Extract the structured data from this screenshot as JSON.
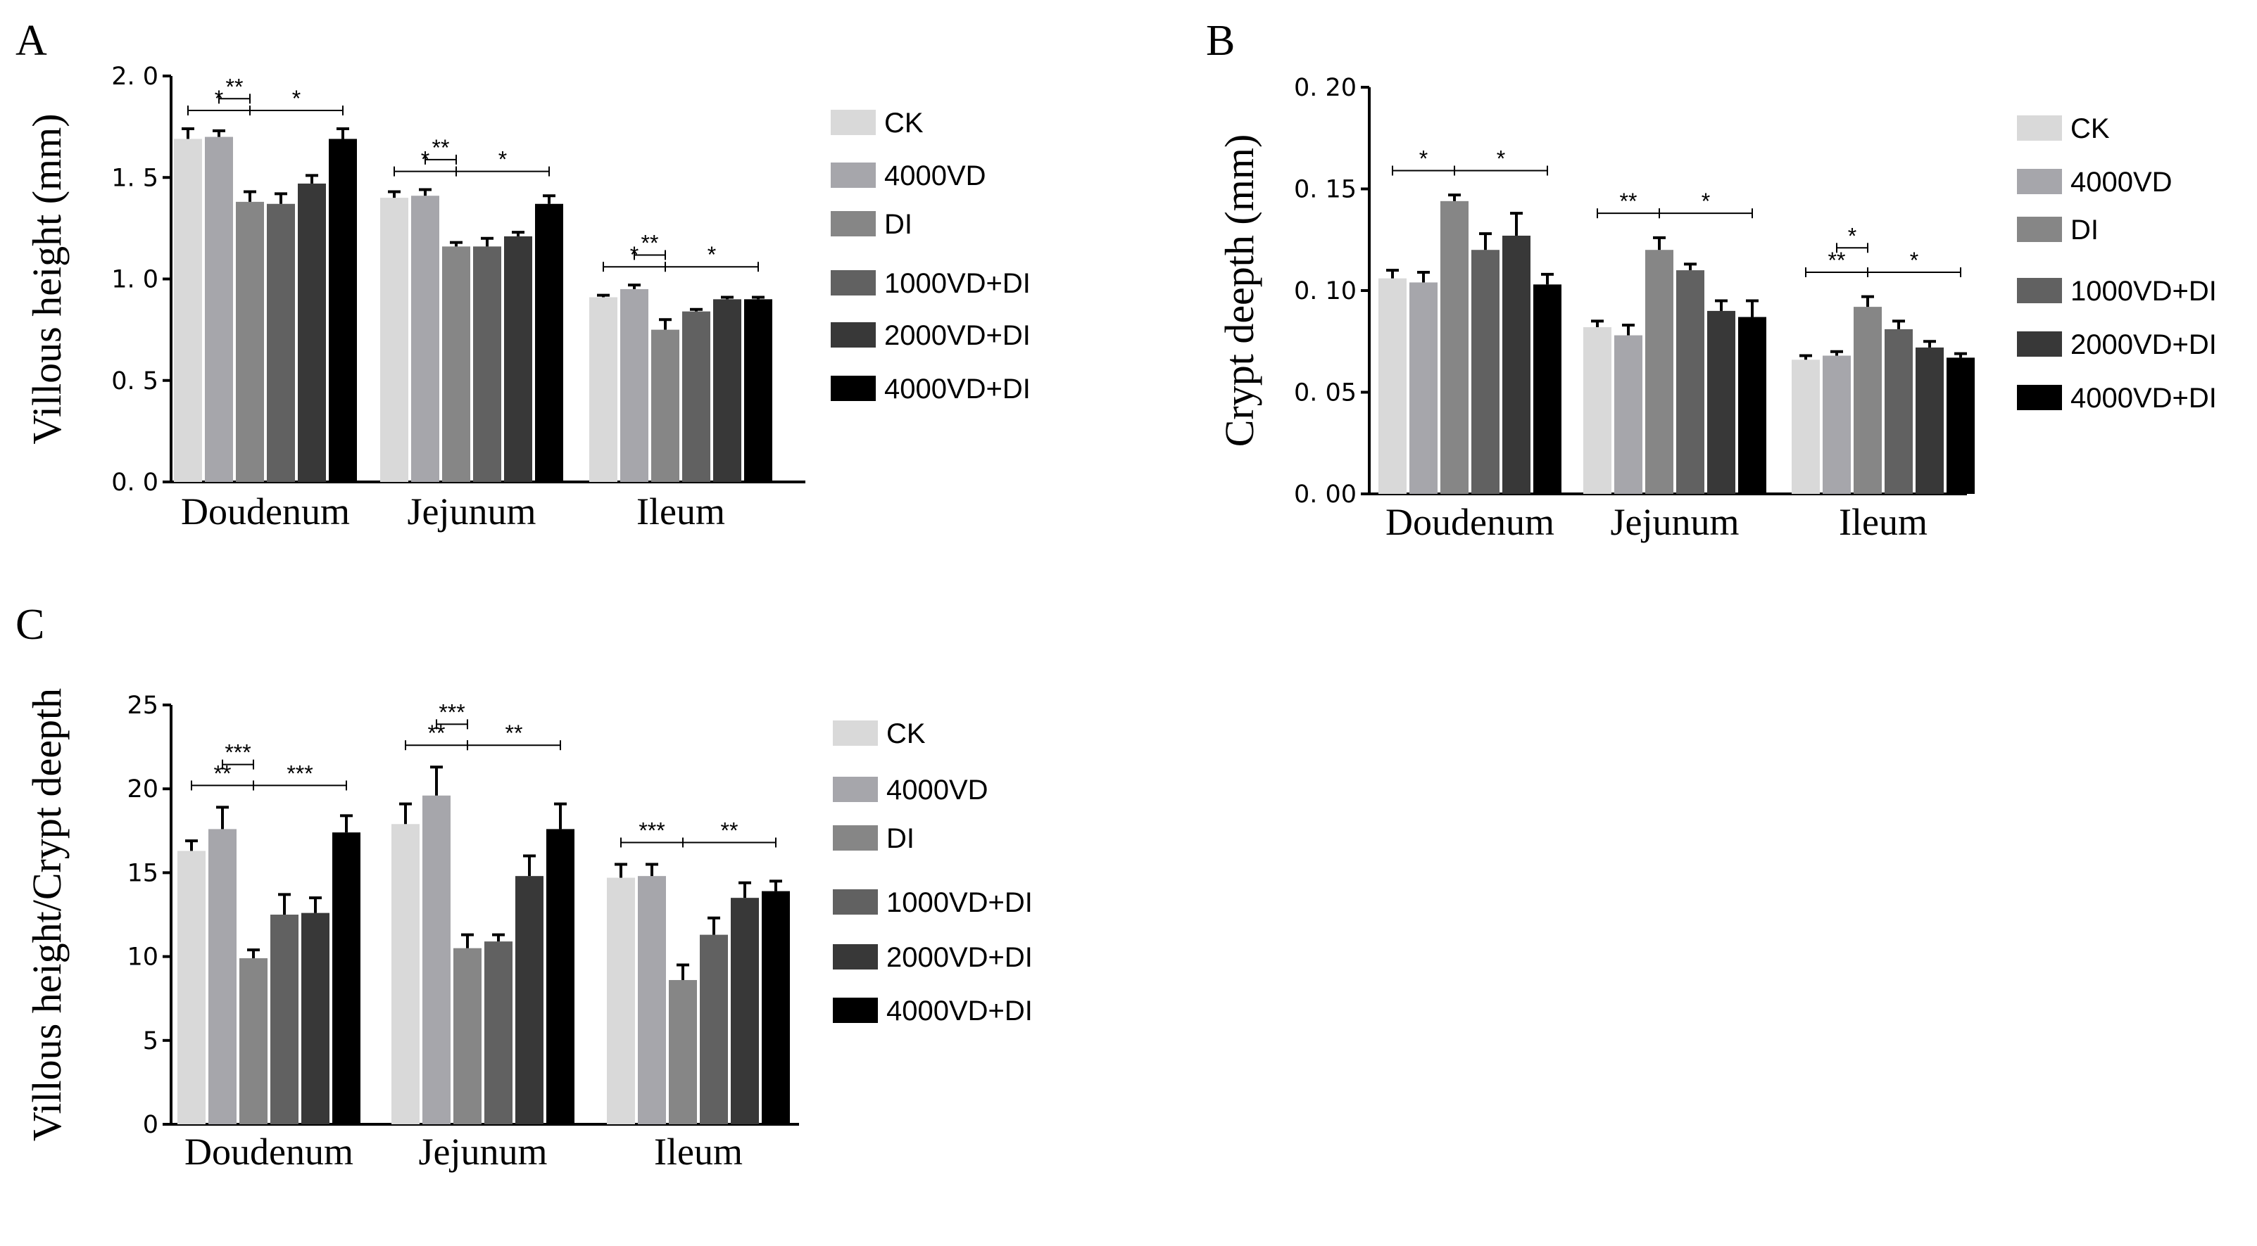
{
  "colors": [
    "#d9d9d9",
    "#a6a6ab",
    "#868686",
    "#616161",
    "#383838",
    "#000000"
  ],
  "series_names": [
    "CK",
    "4000VD",
    "DI",
    "1000VD+DI",
    "2000VD+DI",
    "4000VD+DI"
  ],
  "chart_data": [
    {
      "type": "bar",
      "panel": "A",
      "ylabel": "Villous height (mm)",
      "ylim": [
        0,
        2.0
      ],
      "yticks": [
        "0. 0",
        "0. 5",
        "1. 0",
        "1. 5",
        "2. 0"
      ],
      "ytick_values": [
        0,
        0.5,
        1.0,
        1.5,
        2.0
      ],
      "categories": [
        "Doudenum",
        "Jejunum",
        "Ileum"
      ],
      "series": [
        {
          "name": "CK",
          "values": [
            1.69,
            1.4,
            0.91
          ],
          "errors": [
            0.05,
            0.03,
            0.01
          ]
        },
        {
          "name": "4000VD",
          "values": [
            1.7,
            1.41,
            0.95
          ],
          "errors": [
            0.03,
            0.03,
            0.02
          ]
        },
        {
          "name": "DI",
          "values": [
            1.38,
            1.16,
            0.75
          ],
          "errors": [
            0.05,
            0.02,
            0.05
          ]
        },
        {
          "name": "1000VD+DI",
          "values": [
            1.37,
            1.16,
            0.84
          ],
          "errors": [
            0.05,
            0.04,
            0.01
          ]
        },
        {
          "name": "2000VD+DI",
          "values": [
            1.47,
            1.21,
            0.9
          ],
          "errors": [
            0.04,
            0.02,
            0.01
          ]
        },
        {
          "name": "4000VD+DI",
          "values": [
            1.69,
            1.37,
            0.9
          ],
          "errors": [
            0.05,
            0.04,
            0.01
          ]
        }
      ],
      "significance": [
        {
          "cat": 0,
          "from": 0,
          "to": 2,
          "label": "*",
          "level": 0
        },
        {
          "cat": 0,
          "from": 2,
          "to": 5,
          "label": "*",
          "level": 0
        },
        {
          "cat": 0,
          "from": 1,
          "to": 2,
          "label": "**",
          "level": 1
        },
        {
          "cat": 1,
          "from": 0,
          "to": 2,
          "label": "*",
          "level": 0
        },
        {
          "cat": 1,
          "from": 2,
          "to": 5,
          "label": "*",
          "level": 0
        },
        {
          "cat": 1,
          "from": 1,
          "to": 2,
          "label": "**",
          "level": 1
        },
        {
          "cat": 2,
          "from": 0,
          "to": 2,
          "label": "*",
          "level": 0
        },
        {
          "cat": 2,
          "from": 2,
          "to": 5,
          "label": "*",
          "level": 0
        },
        {
          "cat": 2,
          "from": 1,
          "to": 2,
          "label": "**",
          "level": 1
        }
      ]
    },
    {
      "type": "bar",
      "panel": "B",
      "ylabel": "Crypt deepth (mm)",
      "ylim": [
        0,
        0.2
      ],
      "yticks": [
        "0. 00",
        "0. 05",
        "0. 10",
        "0. 15",
        "0. 20"
      ],
      "ytick_values": [
        0,
        0.05,
        0.1,
        0.15,
        0.2
      ],
      "categories": [
        "Doudenum",
        "Jejunum",
        "Ileum"
      ],
      "series": [
        {
          "name": "CK",
          "values": [
            0.106,
            0.082,
            0.066
          ],
          "errors": [
            0.004,
            0.003,
            0.002
          ]
        },
        {
          "name": "4000VD",
          "values": [
            0.104,
            0.078,
            0.068
          ],
          "errors": [
            0.005,
            0.005,
            0.002
          ]
        },
        {
          "name": "DI",
          "values": [
            0.144,
            0.12,
            0.092
          ],
          "errors": [
            0.003,
            0.006,
            0.005
          ]
        },
        {
          "name": "1000VD+DI",
          "values": [
            0.12,
            0.11,
            0.081
          ],
          "errors": [
            0.008,
            0.003,
            0.004
          ]
        },
        {
          "name": "2000VD+DI",
          "values": [
            0.127,
            0.09,
            0.072
          ],
          "errors": [
            0.011,
            0.005,
            0.003
          ]
        },
        {
          "name": "4000VD+DI",
          "values": [
            0.103,
            0.087,
            0.067
          ],
          "errors": [
            0.005,
            0.008,
            0.002
          ]
        }
      ],
      "significance": [
        {
          "cat": 0,
          "from": 0,
          "to": 2,
          "label": "*",
          "level": 0
        },
        {
          "cat": 0,
          "from": 2,
          "to": 5,
          "label": "*",
          "level": 0
        },
        {
          "cat": 1,
          "from": 0,
          "to": 2,
          "label": "**",
          "level": 0
        },
        {
          "cat": 1,
          "from": 2,
          "to": 5,
          "label": "*",
          "level": 0
        },
        {
          "cat": 2,
          "from": 0,
          "to": 2,
          "label": "**",
          "level": 0
        },
        {
          "cat": 2,
          "from": 2,
          "to": 5,
          "label": "*",
          "level": 0
        },
        {
          "cat": 2,
          "from": 1,
          "to": 2,
          "label": "*",
          "level": 1
        }
      ]
    },
    {
      "type": "bar",
      "panel": "C",
      "ylabel": "Villous height/Crypt deepth",
      "ylim": [
        0,
        25
      ],
      "yticks": [
        "0",
        "5",
        "10",
        "15",
        "20",
        "25"
      ],
      "ytick_values": [
        0,
        5,
        10,
        15,
        20,
        25
      ],
      "categories": [
        "Doudenum",
        "Jejunum",
        "Ileum"
      ],
      "series": [
        {
          "name": "CK",
          "values": [
            16.3,
            17.9,
            14.7
          ],
          "errors": [
            0.6,
            1.2,
            0.8
          ]
        },
        {
          "name": "4000VD",
          "values": [
            17.6,
            19.6,
            14.8
          ],
          "errors": [
            1.3,
            1.7,
            0.7
          ]
        },
        {
          "name": "DI",
          "values": [
            9.9,
            10.5,
            8.6
          ],
          "errors": [
            0.5,
            0.8,
            0.9
          ]
        },
        {
          "name": "1000VD+DI",
          "values": [
            12.5,
            10.9,
            11.3
          ],
          "errors": [
            1.2,
            0.4,
            1.0
          ]
        },
        {
          "name": "2000VD+DI",
          "values": [
            12.6,
            14.8,
            13.5
          ],
          "errors": [
            0.9,
            1.2,
            0.9
          ]
        },
        {
          "name": "4000VD+DI",
          "values": [
            17.4,
            17.6,
            13.9
          ],
          "errors": [
            1.0,
            1.5,
            0.6
          ]
        }
      ],
      "significance": [
        {
          "cat": 0,
          "from": 0,
          "to": 2,
          "label": "**",
          "level": 0
        },
        {
          "cat": 0,
          "from": 2,
          "to": 5,
          "label": "***",
          "level": 0
        },
        {
          "cat": 0,
          "from": 1,
          "to": 2,
          "label": "***",
          "level": 1
        },
        {
          "cat": 1,
          "from": 0,
          "to": 2,
          "label": "**",
          "level": 0
        },
        {
          "cat": 1,
          "from": 2,
          "to": 5,
          "label": "**",
          "level": 0
        },
        {
          "cat": 1,
          "from": 1,
          "to": 2,
          "label": "***",
          "level": 1
        },
        {
          "cat": 2,
          "from": 0,
          "to": 2,
          "label": "***",
          "level": 0
        },
        {
          "cat": 2,
          "from": 2,
          "to": 5,
          "label": "**",
          "level": 0
        }
      ]
    }
  ]
}
